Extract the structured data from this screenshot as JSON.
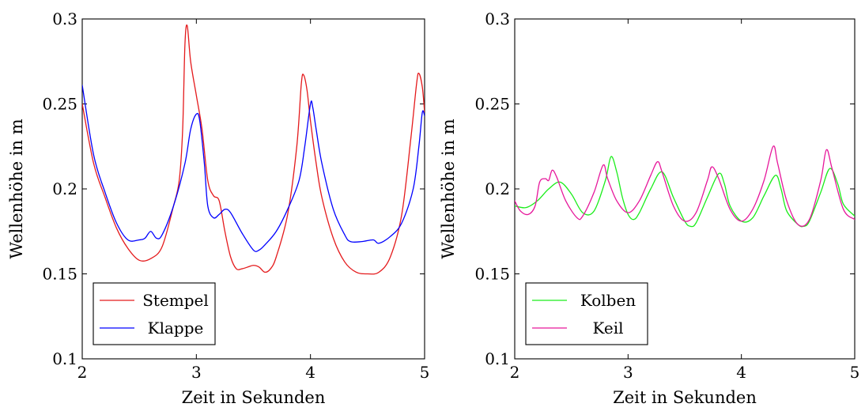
{
  "chart_data": [
    {
      "type": "line",
      "xlabel": "Zeit in Sekunden",
      "ylabel": "Wellenhöhe in m",
      "xlim": [
        2,
        5
      ],
      "ylim": [
        0.1,
        0.3
      ],
      "xticks": [
        "2",
        "3",
        "4",
        "5"
      ],
      "yticks": [
        "0.1",
        "0.15",
        "0.2",
        "0.25",
        "0.3"
      ],
      "grid": false,
      "legend_position": "bottom-left",
      "series": [
        {
          "name": "Stempel",
          "color": "#e41a1c",
          "points": [
            [
              2.0,
              0.25
            ],
            [
              2.1,
              0.215
            ],
            [
              2.2,
              0.195
            ],
            [
              2.3,
              0.177
            ],
            [
              2.4,
              0.165
            ],
            [
              2.5,
              0.158
            ],
            [
              2.6,
              0.159
            ],
            [
              2.7,
              0.166
            ],
            [
              2.8,
              0.19
            ],
            [
              2.85,
              0.205
            ],
            [
              2.88,
              0.235
            ],
            [
              2.9,
              0.285
            ],
            [
              2.92,
              0.296
            ],
            [
              2.95,
              0.275
            ],
            [
              3.0,
              0.255
            ],
            [
              3.05,
              0.235
            ],
            [
              3.1,
              0.205
            ],
            [
              3.15,
              0.196
            ],
            [
              3.2,
              0.193
            ],
            [
              3.25,
              0.175
            ],
            [
              3.3,
              0.16
            ],
            [
              3.35,
              0.153
            ],
            [
              3.4,
              0.153
            ],
            [
              3.45,
              0.154
            ],
            [
              3.5,
              0.155
            ],
            [
              3.55,
              0.154
            ],
            [
              3.6,
              0.151
            ],
            [
              3.65,
              0.153
            ],
            [
              3.7,
              0.16
            ],
            [
              3.8,
              0.185
            ],
            [
              3.88,
              0.225
            ],
            [
              3.92,
              0.262
            ],
            [
              3.94,
              0.267
            ],
            [
              3.97,
              0.258
            ],
            [
              4.0,
              0.24
            ],
            [
              4.05,
              0.215
            ],
            [
              4.1,
              0.195
            ],
            [
              4.2,
              0.171
            ],
            [
              4.3,
              0.157
            ],
            [
              4.4,
              0.151
            ],
            [
              4.5,
              0.15
            ],
            [
              4.6,
              0.151
            ],
            [
              4.7,
              0.16
            ],
            [
              4.8,
              0.185
            ],
            [
              4.88,
              0.23
            ],
            [
              4.93,
              0.262
            ],
            [
              4.95,
              0.268
            ],
            [
              4.98,
              0.26
            ],
            [
              5.0,
              0.245
            ]
          ]
        },
        {
          "name": "Klappe",
          "color": "#0000ff",
          "points": [
            [
              2.0,
              0.261
            ],
            [
              2.1,
              0.22
            ],
            [
              2.2,
              0.198
            ],
            [
              2.3,
              0.18
            ],
            [
              2.4,
              0.17
            ],
            [
              2.5,
              0.17
            ],
            [
              2.55,
              0.171
            ],
            [
              2.6,
              0.175
            ],
            [
              2.65,
              0.171
            ],
            [
              2.7,
              0.173
            ],
            [
              2.8,
              0.19
            ],
            [
              2.9,
              0.215
            ],
            [
              2.95,
              0.235
            ],
            [
              3.0,
              0.244
            ],
            [
              3.03,
              0.24
            ],
            [
              3.07,
              0.215
            ],
            [
              3.1,
              0.19
            ],
            [
              3.15,
              0.183
            ],
            [
              3.2,
              0.185
            ],
            [
              3.25,
              0.188
            ],
            [
              3.3,
              0.186
            ],
            [
              3.4,
              0.174
            ],
            [
              3.5,
              0.164
            ],
            [
              3.55,
              0.164
            ],
            [
              3.6,
              0.167
            ],
            [
              3.7,
              0.175
            ],
            [
              3.8,
              0.188
            ],
            [
              3.9,
              0.205
            ],
            [
              3.95,
              0.225
            ],
            [
              4.0,
              0.25
            ],
            [
              4.02,
              0.248
            ],
            [
              4.05,
              0.235
            ],
            [
              4.1,
              0.215
            ],
            [
              4.2,
              0.188
            ],
            [
              4.3,
              0.173
            ],
            [
              4.35,
              0.169
            ],
            [
              4.45,
              0.169
            ],
            [
              4.55,
              0.17
            ],
            [
              4.6,
              0.168
            ],
            [
              4.7,
              0.172
            ],
            [
              4.8,
              0.18
            ],
            [
              4.9,
              0.2
            ],
            [
              4.95,
              0.225
            ],
            [
              4.98,
              0.245
            ],
            [
              5.0,
              0.243
            ]
          ]
        }
      ]
    },
    {
      "type": "line",
      "xlabel": "Zeit in Sekunden",
      "ylabel": "Wellenhöhe in m",
      "xlim": [
        2,
        5
      ],
      "ylim": [
        0.1,
        0.3
      ],
      "xticks": [
        "2",
        "3",
        "4",
        "5"
      ],
      "yticks": [
        "0.1",
        "0.15",
        "0.2",
        "0.25",
        "0.3"
      ],
      "grid": false,
      "legend_position": "bottom-left",
      "series": [
        {
          "name": "Kolben",
          "color": "#1aed1a",
          "points": [
            [
              2.0,
              0.19
            ],
            [
              2.1,
              0.189
            ],
            [
              2.2,
              0.193
            ],
            [
              2.3,
              0.2
            ],
            [
              2.4,
              0.204
            ],
            [
              2.5,
              0.197
            ],
            [
              2.6,
              0.186
            ],
            [
              2.7,
              0.187
            ],
            [
              2.8,
              0.205
            ],
            [
              2.85,
              0.219
            ],
            [
              2.9,
              0.21
            ],
            [
              2.95,
              0.195
            ],
            [
              3.0,
              0.185
            ],
            [
              3.05,
              0.182
            ],
            [
              3.1,
              0.186
            ],
            [
              3.2,
              0.2
            ],
            [
              3.3,
              0.21
            ],
            [
              3.4,
              0.195
            ],
            [
              3.5,
              0.181
            ],
            [
              3.55,
              0.178
            ],
            [
              3.6,
              0.18
            ],
            [
              3.7,
              0.195
            ],
            [
              3.8,
              0.209
            ],
            [
              3.85,
              0.203
            ],
            [
              3.9,
              0.19
            ],
            [
              4.0,
              0.181
            ],
            [
              4.1,
              0.183
            ],
            [
              4.2,
              0.196
            ],
            [
              4.3,
              0.208
            ],
            [
              4.35,
              0.2
            ],
            [
              4.4,
              0.187
            ],
            [
              4.5,
              0.179
            ],
            [
              4.55,
              0.178
            ],
            [
              4.6,
              0.181
            ],
            [
              4.7,
              0.198
            ],
            [
              4.78,
              0.212
            ],
            [
              4.85,
              0.203
            ],
            [
              4.9,
              0.191
            ],
            [
              5.0,
              0.184
            ]
          ]
        },
        {
          "name": "Keil",
          "color": "#e6179b",
          "points": [
            [
              2.0,
              0.193
            ],
            [
              2.05,
              0.187
            ],
            [
              2.12,
              0.185
            ],
            [
              2.18,
              0.19
            ],
            [
              2.22,
              0.204
            ],
            [
              2.27,
              0.206
            ],
            [
              2.3,
              0.205
            ],
            [
              2.33,
              0.211
            ],
            [
              2.37,
              0.207
            ],
            [
              2.45,
              0.193
            ],
            [
              2.55,
              0.183
            ],
            [
              2.6,
              0.184
            ],
            [
              2.7,
              0.198
            ],
            [
              2.78,
              0.214
            ],
            [
              2.82,
              0.206
            ],
            [
              2.9,
              0.193
            ],
            [
              3.0,
              0.186
            ],
            [
              3.1,
              0.193
            ],
            [
              3.2,
              0.208
            ],
            [
              3.26,
              0.216
            ],
            [
              3.3,
              0.21
            ],
            [
              3.4,
              0.19
            ],
            [
              3.5,
              0.181
            ],
            [
              3.6,
              0.186
            ],
            [
              3.7,
              0.205
            ],
            [
              3.74,
              0.213
            ],
            [
              3.8,
              0.206
            ],
            [
              3.9,
              0.188
            ],
            [
              4.0,
              0.181
            ],
            [
              4.1,
              0.188
            ],
            [
              4.2,
              0.205
            ],
            [
              4.28,
              0.225
            ],
            [
              4.32,
              0.215
            ],
            [
              4.4,
              0.193
            ],
            [
              4.5,
              0.179
            ],
            [
              4.6,
              0.182
            ],
            [
              4.7,
              0.205
            ],
            [
              4.75,
              0.223
            ],
            [
              4.8,
              0.212
            ],
            [
              4.9,
              0.188
            ],
            [
              5.0,
              0.182
            ]
          ]
        }
      ]
    }
  ]
}
